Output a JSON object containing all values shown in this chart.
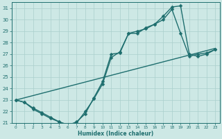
{
  "title": "",
  "xlabel": "Humidex (Indice chaleur)",
  "xlim": [
    -0.5,
    23.5
  ],
  "ylim": [
    21,
    31.5
  ],
  "xticks": [
    0,
    1,
    2,
    3,
    4,
    5,
    6,
    7,
    8,
    9,
    10,
    11,
    12,
    13,
    14,
    15,
    16,
    17,
    18,
    19,
    20,
    21,
    22,
    23
  ],
  "yticks": [
    21,
    22,
    23,
    24,
    25,
    26,
    27,
    28,
    29,
    30,
    31
  ],
  "background_color": "#cde8e5",
  "grid_color": "#aacfcc",
  "line_color": "#1e6e6e",
  "series": [
    {
      "x": [
        0,
        23
      ],
      "y": [
        23.0,
        27.5
      ],
      "marker": null,
      "markersize": 0,
      "linewidth": 1.0
    },
    {
      "x": [
        0,
        1,
        2,
        3,
        4,
        5,
        6,
        7,
        8,
        9,
        10,
        11,
        12,
        13,
        14,
        15,
        16,
        17,
        18,
        19,
        20,
        21,
        22,
        23
      ],
      "y": [
        23.0,
        22.8,
        22.3,
        21.9,
        21.5,
        21.1,
        20.8,
        21.1,
        21.8,
        23.2,
        24.6,
        27.0,
        27.1,
        28.8,
        28.8,
        29.3,
        29.6,
        30.3,
        31.1,
        31.2,
        27.0,
        26.8,
        27.0,
        27.4
      ],
      "marker": "D",
      "markersize": 2.5,
      "linewidth": 1.0
    },
    {
      "x": [
        0,
        1,
        2,
        3,
        4,
        5,
        6,
        7,
        8,
        9,
        10,
        11,
        12,
        13,
        14,
        15,
        16,
        17,
        18,
        19,
        20,
        21,
        22,
        23
      ],
      "y": [
        23.0,
        22.8,
        22.2,
        21.8,
        21.4,
        21.1,
        20.85,
        21.0,
        22.0,
        23.1,
        24.4,
        26.7,
        27.2,
        28.8,
        29.0,
        29.2,
        29.6,
        30.0,
        30.9,
        28.8,
        26.8,
        27.0,
        27.1,
        27.4
      ],
      "marker": "D",
      "markersize": 2.5,
      "linewidth": 1.0
    }
  ]
}
